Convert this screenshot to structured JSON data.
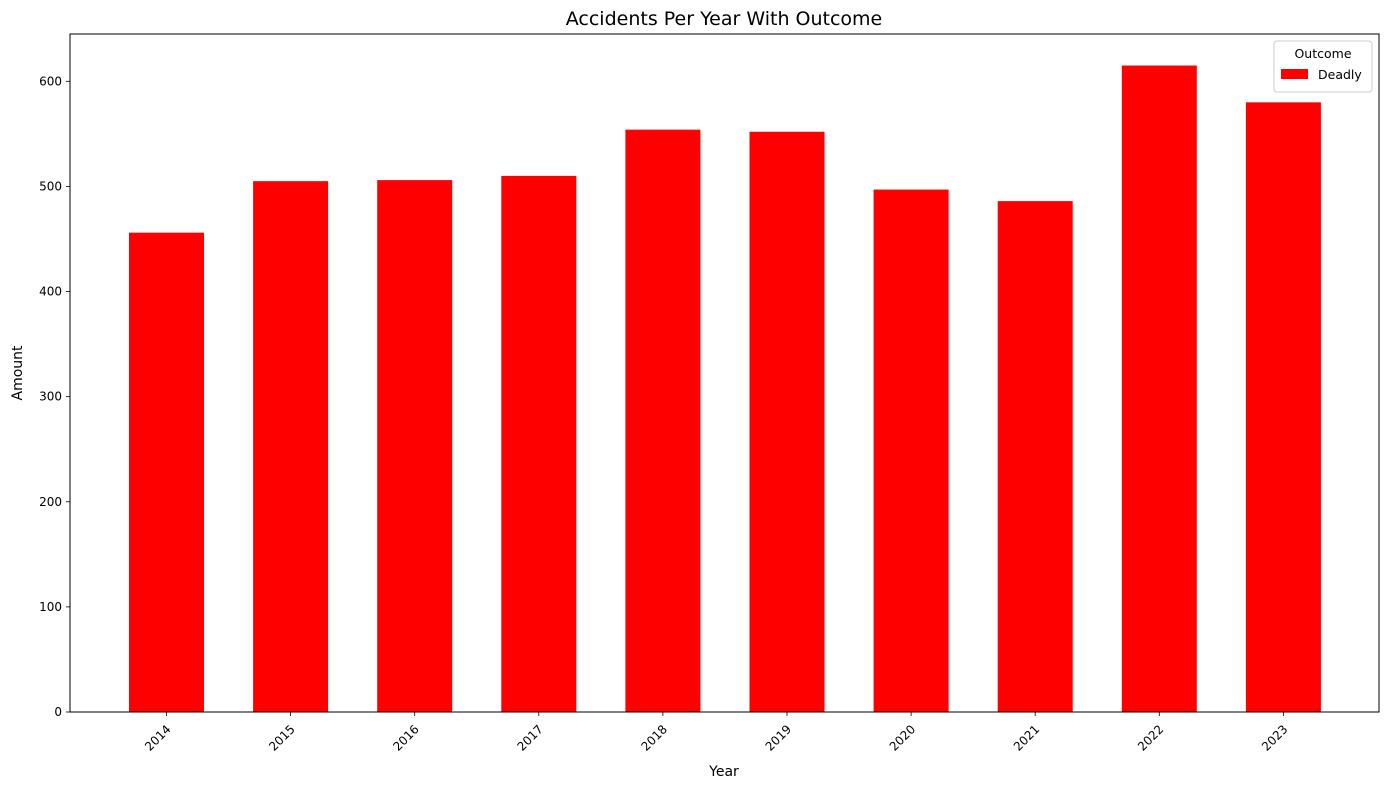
{
  "chart_data": {
    "type": "bar",
    "title": "Accidents Per Year With Outcome",
    "xlabel": "Year",
    "ylabel": "Amount",
    "categories": [
      "2014",
      "2015",
      "2016",
      "2017",
      "2018",
      "2019",
      "2020",
      "2021",
      "2022",
      "2023"
    ],
    "series": [
      {
        "name": "Deadly",
        "color": "#ff0000",
        "values": [
          456,
          505,
          506,
          510,
          554,
          552,
          497,
          486,
          615,
          580
        ]
      }
    ],
    "ylim": [
      0,
      645
    ],
    "yticks": [
      0,
      100,
      200,
      300,
      400,
      500,
      600
    ],
    "grid": false,
    "legend": {
      "title": "Outcome",
      "position": "top-right"
    },
    "xtick_rotation": 45
  }
}
